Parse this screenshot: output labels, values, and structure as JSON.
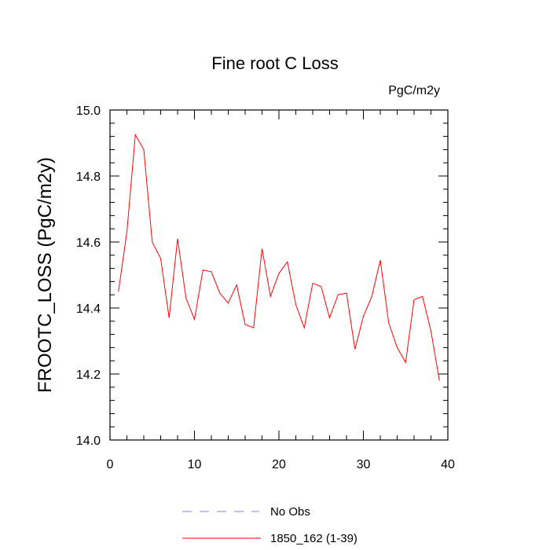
{
  "chart_data": {
    "type": "line",
    "title": "Fine root C Loss",
    "units_label": "PgC/m2y",
    "ylabel": "FROOTC_LOSS  (PgC/m2y)",
    "xlabel": "",
    "xlim": [
      0,
      40
    ],
    "ylim": [
      14.0,
      15.0
    ],
    "x_ticks": [
      0,
      10,
      20,
      30,
      40
    ],
    "y_ticks": [
      "14.0",
      "14.2",
      "14.4",
      "14.6",
      "14.8",
      "15.0"
    ],
    "grid": false,
    "legend_position": "bottom",
    "series": [
      {
        "name": "No Obs",
        "color": "#8080ff",
        "style": "dashed",
        "x": [],
        "values": []
      },
      {
        "name": "1850_162 (1-39)",
        "color": "#ff0000",
        "style": "solid",
        "x": [
          1,
          2,
          3,
          4,
          5,
          6,
          7,
          8,
          9,
          10,
          11,
          12,
          13,
          14,
          15,
          16,
          17,
          18,
          19,
          20,
          21,
          22,
          23,
          24,
          25,
          26,
          27,
          28,
          29,
          30,
          31,
          32,
          33,
          34,
          35,
          36,
          37,
          38,
          39
        ],
        "values": [
          14.45,
          14.63,
          14.925,
          14.88,
          14.6,
          14.55,
          14.37,
          14.61,
          14.43,
          14.365,
          14.515,
          14.51,
          14.445,
          14.415,
          14.47,
          14.35,
          14.34,
          14.58,
          14.435,
          14.505,
          14.54,
          14.41,
          14.34,
          14.475,
          14.465,
          14.37,
          14.44,
          14.445,
          14.275,
          14.375,
          14.435,
          14.545,
          14.355,
          14.28,
          14.235,
          14.425,
          14.435,
          14.33,
          14.18
        ]
      }
    ]
  }
}
